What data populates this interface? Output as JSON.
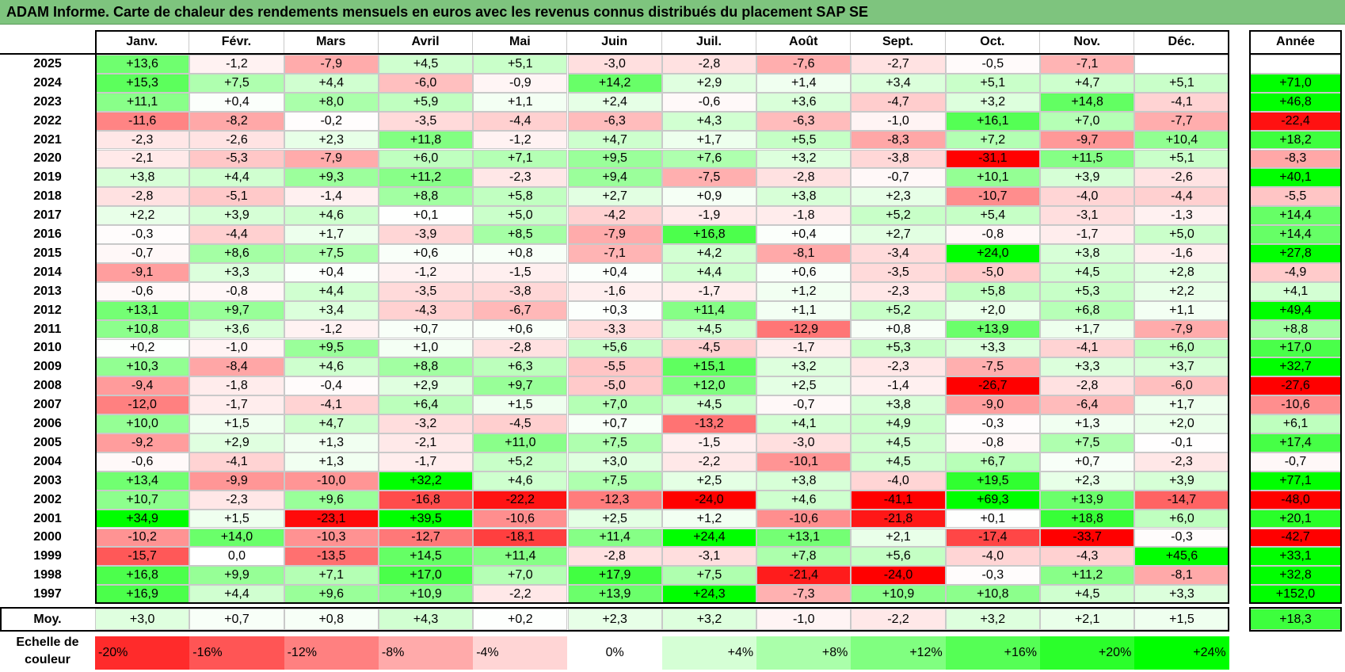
{
  "title": "ADAM Informe. Carte de chaleur des rendements mensuels en euros avec les revenus connus distribués du placement SAP SE",
  "chart_data": {
    "type": "heatmap",
    "title": "ADAM Informe. Carte de chaleur des rendements mensuels en euros avec les revenus connus distribués du placement SAP SE",
    "months": [
      "Janv.",
      "Févr.",
      "Mars",
      "Avril",
      "Mai",
      "Juin",
      "Juil.",
      "Août",
      "Sept.",
      "Oct.",
      "Nov.",
      "Déc."
    ],
    "year_header": "Année",
    "avg_label": "Moy.",
    "rows": [
      {
        "year": "2025",
        "values": [
          "+13,6",
          "-1,2",
          "-7,9",
          "+4,5",
          "+5,1",
          "-3,0",
          "-2,8",
          "-7,6",
          "-2,7",
          "-0,5",
          "-7,1",
          ""
        ],
        "annual": ""
      },
      {
        "year": "2024",
        "values": [
          "+15,3",
          "+7,5",
          "+4,4",
          "-6,0",
          "-0,9",
          "+14,2",
          "+2,9",
          "+1,4",
          "+3,4",
          "+5,1",
          "+4,7",
          "+5,1"
        ],
        "annual": "+71,0"
      },
      {
        "year": "2023",
        "values": [
          "+11,1",
          "+0,4",
          "+8,0",
          "+5,9",
          "+1,1",
          "+2,4",
          "-0,6",
          "+3,6",
          "-4,7",
          "+3,2",
          "+14,8",
          "-4,1"
        ],
        "annual": "+46,8"
      },
      {
        "year": "2022",
        "values": [
          "-11,6",
          "-8,2",
          "-0,2",
          "-3,5",
          "-4,4",
          "-6,3",
          "+4,3",
          "-6,3",
          "-1,0",
          "+16,1",
          "+7,0",
          "-7,7"
        ],
        "annual": "-22,4"
      },
      {
        "year": "2021",
        "values": [
          "-2,3",
          "-2,6",
          "+2,3",
          "+11,8",
          "-1,2",
          "+4,7",
          "+1,7",
          "+5,5",
          "-8,3",
          "+7,2",
          "-9,7",
          "+10,4"
        ],
        "annual": "+18,2"
      },
      {
        "year": "2020",
        "values": [
          "-2,1",
          "-5,3",
          "-7,9",
          "+6,0",
          "+7,1",
          "+9,5",
          "+7,6",
          "+3,2",
          "-3,8",
          "-31,1",
          "+11,5",
          "+5,1"
        ],
        "annual": "-8,3"
      },
      {
        "year": "2019",
        "values": [
          "+3,8",
          "+4,4",
          "+9,3",
          "+11,2",
          "-2,3",
          "+9,4",
          "-7,5",
          "-2,8",
          "-0,7",
          "+10,1",
          "+3,9",
          "-2,6"
        ],
        "annual": "+40,1"
      },
      {
        "year": "2018",
        "values": [
          "-2,8",
          "-5,1",
          "-1,4",
          "+8,8",
          "+5,8",
          "+2,7",
          "+0,9",
          "+3,8",
          "+2,3",
          "-10,7",
          "-4,0",
          "-4,4"
        ],
        "annual": "-5,5"
      },
      {
        "year": "2017",
        "values": [
          "+2,2",
          "+3,9",
          "+4,6",
          "+0,1",
          "+5,0",
          "-4,2",
          "-1,9",
          "-1,8",
          "+5,2",
          "+5,4",
          "-3,1",
          "-1,3"
        ],
        "annual": "+14,4"
      },
      {
        "year": "2016",
        "values": [
          "-0,3",
          "-4,4",
          "+1,7",
          "-3,9",
          "+8,5",
          "-7,9",
          "+16,8",
          "+0,4",
          "+2,7",
          "-0,8",
          "-1,7",
          "+5,0"
        ],
        "annual": "+14,4"
      },
      {
        "year": "2015",
        "values": [
          "-0,7",
          "+8,6",
          "+7,5",
          "+0,6",
          "+0,8",
          "-7,1",
          "+4,2",
          "-8,1",
          "-3,4",
          "+24,0",
          "+3,8",
          "-1,6"
        ],
        "annual": "+27,8"
      },
      {
        "year": "2014",
        "values": [
          "-9,1",
          "+3,3",
          "+0,4",
          "-1,2",
          "-1,5",
          "+0,4",
          "+4,4",
          "+0,6",
          "-3,5",
          "-5,0",
          "+4,5",
          "+2,8"
        ],
        "annual": "-4,9"
      },
      {
        "year": "2013",
        "values": [
          "-0,6",
          "-0,8",
          "+4,4",
          "-3,5",
          "-3,8",
          "-1,6",
          "-1,7",
          "+1,2",
          "-2,3",
          "+5,8",
          "+5,3",
          "+2,2"
        ],
        "annual": "+4,1"
      },
      {
        "year": "2012",
        "values": [
          "+13,1",
          "+9,7",
          "+3,4",
          "-4,3",
          "-6,7",
          "+0,3",
          "+11,4",
          "+1,1",
          "+5,2",
          "+2,0",
          "+6,8",
          "+1,1"
        ],
        "annual": "+49,4"
      },
      {
        "year": "2011",
        "values": [
          "+10,8",
          "+3,6",
          "-1,2",
          "+0,7",
          "+0,6",
          "-3,3",
          "+4,5",
          "-12,9",
          "+0,8",
          "+13,9",
          "+1,7",
          "-7,9"
        ],
        "annual": "+8,8"
      },
      {
        "year": "2010",
        "values": [
          "+0,2",
          "-1,0",
          "+9,5",
          "+1,0",
          "-2,8",
          "+5,6",
          "-4,5",
          "-1,7",
          "+5,3",
          "+3,3",
          "-4,1",
          "+6,0"
        ],
        "annual": "+17,0"
      },
      {
        "year": "2009",
        "values": [
          "+10,3",
          "-8,4",
          "+4,6",
          "+8,8",
          "+6,3",
          "-5,5",
          "+15,1",
          "+3,2",
          "-2,3",
          "-7,5",
          "+3,3",
          "+3,7"
        ],
        "annual": "+32,7"
      },
      {
        "year": "2008",
        "values": [
          "-9,4",
          "-1,8",
          "-0,4",
          "+2,9",
          "+9,7",
          "-5,0",
          "+12,0",
          "+2,5",
          "-1,4",
          "-26,7",
          "-2,8",
          "-6,0"
        ],
        "annual": "-27,6"
      },
      {
        "year": "2007",
        "values": [
          "-12,0",
          "-1,7",
          "-4,1",
          "+6,4",
          "+1,5",
          "+7,0",
          "+4,5",
          "-0,7",
          "+3,8",
          "-9,0",
          "-6,4",
          "+1,7"
        ],
        "annual": "-10,6"
      },
      {
        "year": "2006",
        "values": [
          "+10,0",
          "+1,5",
          "+4,7",
          "-3,2",
          "-4,5",
          "+0,7",
          "-13,2",
          "+4,1",
          "+4,9",
          "-0,3",
          "+1,3",
          "+2,0"
        ],
        "annual": "+6,1"
      },
      {
        "year": "2005",
        "values": [
          "-9,2",
          "+2,9",
          "+1,3",
          "-2,1",
          "+11,0",
          "+7,5",
          "-1,5",
          "-3,0",
          "+4,5",
          "-0,8",
          "+7,5",
          "-0,1"
        ],
        "annual": "+17,4"
      },
      {
        "year": "2004",
        "values": [
          "-0,6",
          "-4,1",
          "+1,3",
          "-1,7",
          "+5,2",
          "+3,0",
          "-2,2",
          "-10,1",
          "+4,5",
          "+6,7",
          "+0,7",
          "-2,3"
        ],
        "annual": "-0,7"
      },
      {
        "year": "2003",
        "values": [
          "+13,4",
          "-9,9",
          "-10,0",
          "+32,2",
          "+4,6",
          "+7,5",
          "+2,5",
          "+3,8",
          "-4,0",
          "+19,5",
          "+2,3",
          "+3,9"
        ],
        "annual": "+77,1"
      },
      {
        "year": "2002",
        "values": [
          "+10,7",
          "-2,3",
          "+9,6",
          "-16,8",
          "-22,2",
          "-12,3",
          "-24,0",
          "+4,6",
          "-41,1",
          "+69,3",
          "+13,9",
          "-14,7"
        ],
        "annual": "-48,0"
      },
      {
        "year": "2001",
        "values": [
          "+34,9",
          "+1,5",
          "-23,1",
          "+39,5",
          "-10,6",
          "+2,5",
          "+1,2",
          "-10,6",
          "-21,8",
          "+0,1",
          "+18,8",
          "+6,0"
        ],
        "annual": "+20,1"
      },
      {
        "year": "2000",
        "values": [
          "-10,2",
          "+14,0",
          "-10,3",
          "-12,7",
          "-18,1",
          "+11,4",
          "+24,4",
          "+13,1",
          "+2,1",
          "-17,4",
          "-33,7",
          "-0,3"
        ],
        "annual": "-42,7"
      },
      {
        "year": "1999",
        "values": [
          "-15,7",
          "0,0",
          "-13,5",
          "+14,5",
          "+11,4",
          "-2,8",
          "-3,1",
          "+7,8",
          "+5,6",
          "-4,0",
          "-4,3",
          "+45,6"
        ],
        "annual": "+33,1"
      },
      {
        "year": "1998",
        "values": [
          "+16,8",
          "+9,9",
          "+7,1",
          "+17,0",
          "+7,0",
          "+17,9",
          "+7,5",
          "-21,4",
          "-24,0",
          "-0,3",
          "+11,2",
          "-8,1"
        ],
        "annual": "+32,8"
      },
      {
        "year": "1997",
        "values": [
          "+16,9",
          "+4,4",
          "+9,6",
          "+10,9",
          "-2,2",
          "+13,9",
          "+24,3",
          "-7,3",
          "+10,9",
          "+10,8",
          "+4,5",
          "+3,3"
        ],
        "annual": "+152,0"
      }
    ],
    "averages": [
      "+3,0",
      "+0,7",
      "+0,8",
      "+4,3",
      "+0,2",
      "+2,3",
      "+3,2",
      "-1,0",
      "-2,2",
      "+3,2",
      "+2,1",
      "+1,5"
    ],
    "average_annual": "+18,3",
    "scale": {
      "label": "Echelle de couleur",
      "steps": [
        {
          "label": "-20%",
          "value": -20
        },
        {
          "label": "-16%",
          "value": -16
        },
        {
          "label": "-12%",
          "value": -12
        },
        {
          "label": "-8%",
          "value": -8
        },
        {
          "label": "-4%",
          "value": -4
        },
        {
          "label": "0%",
          "value": 0
        },
        {
          "label": "+4%",
          "value": 4
        },
        {
          "label": "+8%",
          "value": 8
        },
        {
          "label": "+12%",
          "value": 12
        },
        {
          "label": "+16%",
          "value": 16
        },
        {
          "label": "+20%",
          "value": 20
        },
        {
          "label": "+24%",
          "value": 24
        }
      ]
    },
    "colors": {
      "neg_max": "#ff0000",
      "pos_max": "#00ff00",
      "neutral": "#ffffff",
      "title_bg": "#7ec47e"
    }
  }
}
